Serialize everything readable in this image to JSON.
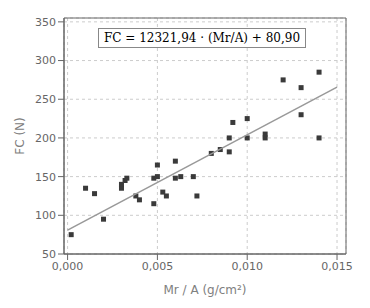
{
  "chart_data": {
    "type": "scatter",
    "xlabel": "Mr / A (g/cm²)",
    "ylabel": "FC (N)",
    "annotation": "FC = 12321,94 · (Mr/A) + 80,90",
    "xlim": [
      -0.0002,
      0.0155
    ],
    "ylim": [
      50,
      355
    ],
    "xticks": [
      {
        "value": 0.0,
        "label": "0,000"
      },
      {
        "value": 0.005,
        "label": "0,005"
      },
      {
        "value": 0.01,
        "label": "0,010"
      },
      {
        "value": 0.015,
        "label": "0,015"
      }
    ],
    "yticks": [
      50,
      100,
      150,
      200,
      250,
      300,
      350
    ],
    "grid": true,
    "series": [
      {
        "type": "scatter",
        "marker": "square",
        "color": "#3a3a3a",
        "x": [
          0.0002,
          0.001,
          0.0015,
          0.002,
          0.003,
          0.003,
          0.0032,
          0.0033,
          0.0038,
          0.004,
          0.0048,
          0.0048,
          0.005,
          0.005,
          0.0053,
          0.0055,
          0.006,
          0.006,
          0.0063,
          0.007,
          0.0072,
          0.008,
          0.0085,
          0.009,
          0.009,
          0.0092,
          0.01,
          0.01,
          0.011,
          0.011,
          0.012,
          0.013,
          0.013,
          0.014,
          0.014
        ],
        "values": [
          75,
          135,
          128,
          95,
          135,
          140,
          145,
          148,
          125,
          120,
          115,
          148,
          150,
          165,
          130,
          125,
          148,
          170,
          150,
          150,
          125,
          180,
          185,
          182,
          200,
          220,
          200,
          225,
          200,
          205,
          275,
          265,
          230,
          285,
          200
        ]
      },
      {
        "type": "line",
        "color": "#999999",
        "x": [
          0.0,
          0.015
        ],
        "values": [
          80.9,
          265.7291
        ]
      }
    ]
  }
}
